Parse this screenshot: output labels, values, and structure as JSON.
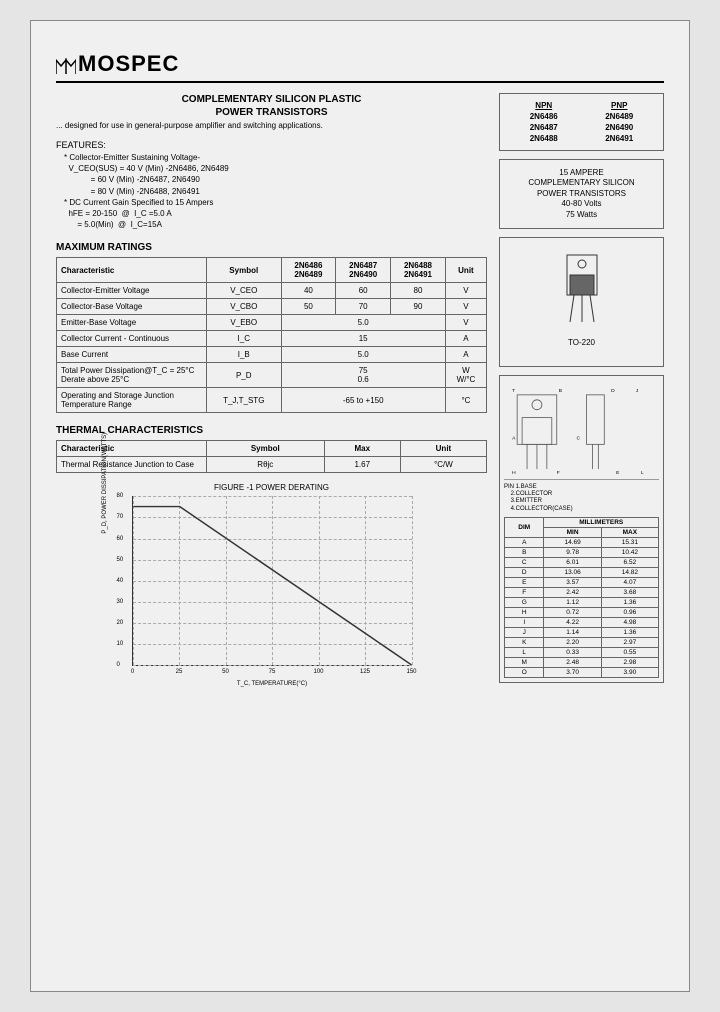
{
  "brand": "MOSPEC",
  "title_line1": "COMPLEMENTARY SILICON PLASTIC",
  "title_line2": "POWER TRANSISTORS",
  "subtitle": "... designed for use in general-purpose amplifier and switching applications.",
  "features_hdr": "FEATURES:",
  "features": [
    "* Collector-Emitter Sustaining Voltage-",
    "  V_CEO(SUS) = 40 V (Min) -2N6486, 2N6489",
    "            = 60 V (Min) -2N6487, 2N6490",
    "            = 80 V (Min) -2N6488, 2N6491",
    "* DC Current Gain Specified to 15 Ampers",
    "  hFE = 20-150  @  I_C =5.0 A",
    "      = 5.0(Min)  @  I_C=15A"
  ],
  "max_ratings_hdr": "MAXIMUM RATINGS",
  "max_ratings": {
    "columns": [
      "Characteristic",
      "Symbol",
      "2N6486\n2N6489",
      "2N6487\n2N6490",
      "2N6488\n2N6491",
      "Unit"
    ],
    "rows": [
      [
        "Collector-Emitter Voltage",
        "V_CEO",
        "40",
        "60",
        "80",
        "V"
      ],
      [
        "Collector-Base Voltage",
        "V_CBO",
        "50",
        "70",
        "90",
        "V"
      ],
      [
        "Emitter-Base Voltage",
        "V_EBO",
        {
          "span": 3,
          "val": "5.0"
        },
        "V"
      ],
      [
        "Collector Current - Continuous",
        "I_C",
        {
          "span": 3,
          "val": "15"
        },
        "A"
      ],
      [
        "Base Current",
        "I_B",
        {
          "span": 3,
          "val": "5.0"
        },
        "A"
      ],
      [
        "Total Power Dissipation@T_C = 25°C\nDerate above 25°C",
        "P_D",
        {
          "span": 3,
          "val": "75\n0.6"
        },
        "W\nW/°C"
      ],
      [
        "Operating and Storage Junction\nTemperature Range",
        "T_J,T_STG",
        {
          "span": 3,
          "val": "-65 to +150"
        },
        "°C"
      ]
    ]
  },
  "thermal_hdr": "THERMAL CHARACTERISTICS",
  "thermal": {
    "columns": [
      "Characteristic",
      "Symbol",
      "Max",
      "Unit"
    ],
    "rows": [
      [
        "Thermal Resistance Junction to Case",
        "Rθjc",
        "1.67",
        "°C/W"
      ]
    ]
  },
  "part_numbers": {
    "hdr_npn": "NPN",
    "hdr_pnp": "PNP",
    "rows": [
      [
        "2N6486",
        "2N6489"
      ],
      [
        "2N6487",
        "2N6490"
      ],
      [
        "2N6488",
        "2N6491"
      ]
    ]
  },
  "desc_box": {
    "l1": "15 AMPERE",
    "l2": "COMPLEMENTARY SILICON",
    "l3": "POWER TRANSISTORS",
    "l4": "40-80 Volts",
    "l5": "75  Watts"
  },
  "package_name": "TO-220",
  "pin_labels": "PIN 1.BASE\n    2.COLLECTOR\n    3.EMITTER\n    4.COLLECTOR(CASE)",
  "dim_hdr": "MILLIMETERS",
  "dim_cols": [
    "DIM",
    "MIN",
    "MAX"
  ],
  "dims": [
    [
      "A",
      "14.69",
      "15.31"
    ],
    [
      "B",
      "9.78",
      "10.42"
    ],
    [
      "C",
      "6.01",
      "6.52"
    ],
    [
      "D",
      "13.06",
      "14.82"
    ],
    [
      "E",
      "3.57",
      "4.07"
    ],
    [
      "F",
      "2.42",
      "3.68"
    ],
    [
      "G",
      "1.12",
      "1.36"
    ],
    [
      "H",
      "0.72",
      "0.96"
    ],
    [
      "I",
      "4.22",
      "4.98"
    ],
    [
      "J",
      "1.14",
      "1.36"
    ],
    [
      "K",
      "2.20",
      "2.97"
    ],
    [
      "L",
      "0.33",
      "0.55"
    ],
    [
      "M",
      "2.48",
      "2.98"
    ],
    [
      "O",
      "3.70",
      "3.90"
    ]
  ],
  "chart": {
    "title": "FIGURE -1 POWER DERATING",
    "ylabel": "P_D, POWER DISSIPATION(WATTS)",
    "xlabel": "T_C, TEMPERATURE(°C)",
    "ylim": [
      0,
      80
    ],
    "ytick_step": 10,
    "xlim": [
      0,
      150
    ],
    "xtick_step": 25,
    "line_pts": [
      [
        25,
        75
      ],
      [
        150,
        0
      ]
    ],
    "line_color": "#333",
    "grid_color": "#aaaaaa",
    "background": "#f0f0f0"
  }
}
